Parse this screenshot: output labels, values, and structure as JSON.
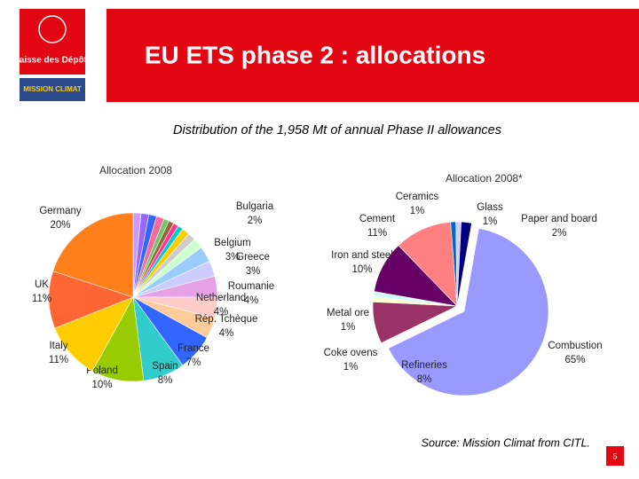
{
  "logo_text": "Caisse des Dépôts",
  "mission_logo_text": "MISSION CLIMAT",
  "title": "EU ETS phase 2 : allocations",
  "subtitle": "Distribution of the 1,958 Mt of annual Phase II allowances",
  "source": "Source: Mission Climat from CITL.",
  "page_number": "5",
  "chart_data": [
    {
      "type": "pie",
      "title": "Allocation 2008",
      "start_angle": 0,
      "categories": [
        null,
        null,
        null,
        null,
        null,
        null,
        null,
        null,
        null,
        null,
        "Bulgaria",
        "Belgium",
        "Greece",
        "Roumanie",
        "Netherland",
        "Rép. Tchèque",
        "France",
        "Spain",
        "Poland",
        "Italy",
        "UK",
        "Germany"
      ],
      "values": [
        1.5,
        1.5,
        1.5,
        1.5,
        1,
        1,
        1,
        1,
        1.5,
        1.5,
        2,
        3,
        3,
        4,
        4,
        4,
        7,
        8,
        10,
        11,
        11,
        20
      ],
      "value_labels": [
        null,
        null,
        null,
        null,
        null,
        null,
        null,
        null,
        null,
        null,
        "2%",
        "3%",
        "3%",
        "4%",
        "4%",
        "4%",
        "7%",
        "8%",
        "10%",
        "11%",
        "11%",
        "20%"
      ],
      "colors": [
        "#cc99ff",
        "#9966ff",
        "#3366ff",
        "#ff6699",
        "#66cc66",
        "#996633",
        "#ff3399",
        "#00cccc",
        "#ffcc00",
        "#cccccc",
        "#ccffcc",
        "#99ccff",
        "#ccccff",
        "#e6a0e6",
        "#ffcccc",
        "#ffcc99",
        "#3366ff",
        "#33cccc",
        "#99cc00",
        "#ffcc00",
        "#ff6633",
        "#ff7f1a"
      ]
    },
    {
      "type": "pie",
      "title": "Allocation 2008*",
      "start_angle": 10,
      "categories": [
        "Combustion",
        "Refineries",
        "Coke ovens",
        "Metal ore",
        "Iron and steel",
        "Cement",
        "Ceramics",
        "Glass",
        "Paper and board"
      ],
      "values": [
        65,
        8,
        1,
        1,
        10,
        11,
        1,
        1,
        2
      ],
      "value_labels": [
        "65%",
        "8%",
        "1%",
        "1%",
        "10%",
        "11%",
        "1%",
        "1%",
        "2%"
      ],
      "colors": [
        "#9999ff",
        "#993366",
        "#ffffcc",
        "#ccffff",
        "#660066",
        "#ff8080",
        "#0066cc",
        "#ccccff",
        "#000080"
      ]
    }
  ]
}
